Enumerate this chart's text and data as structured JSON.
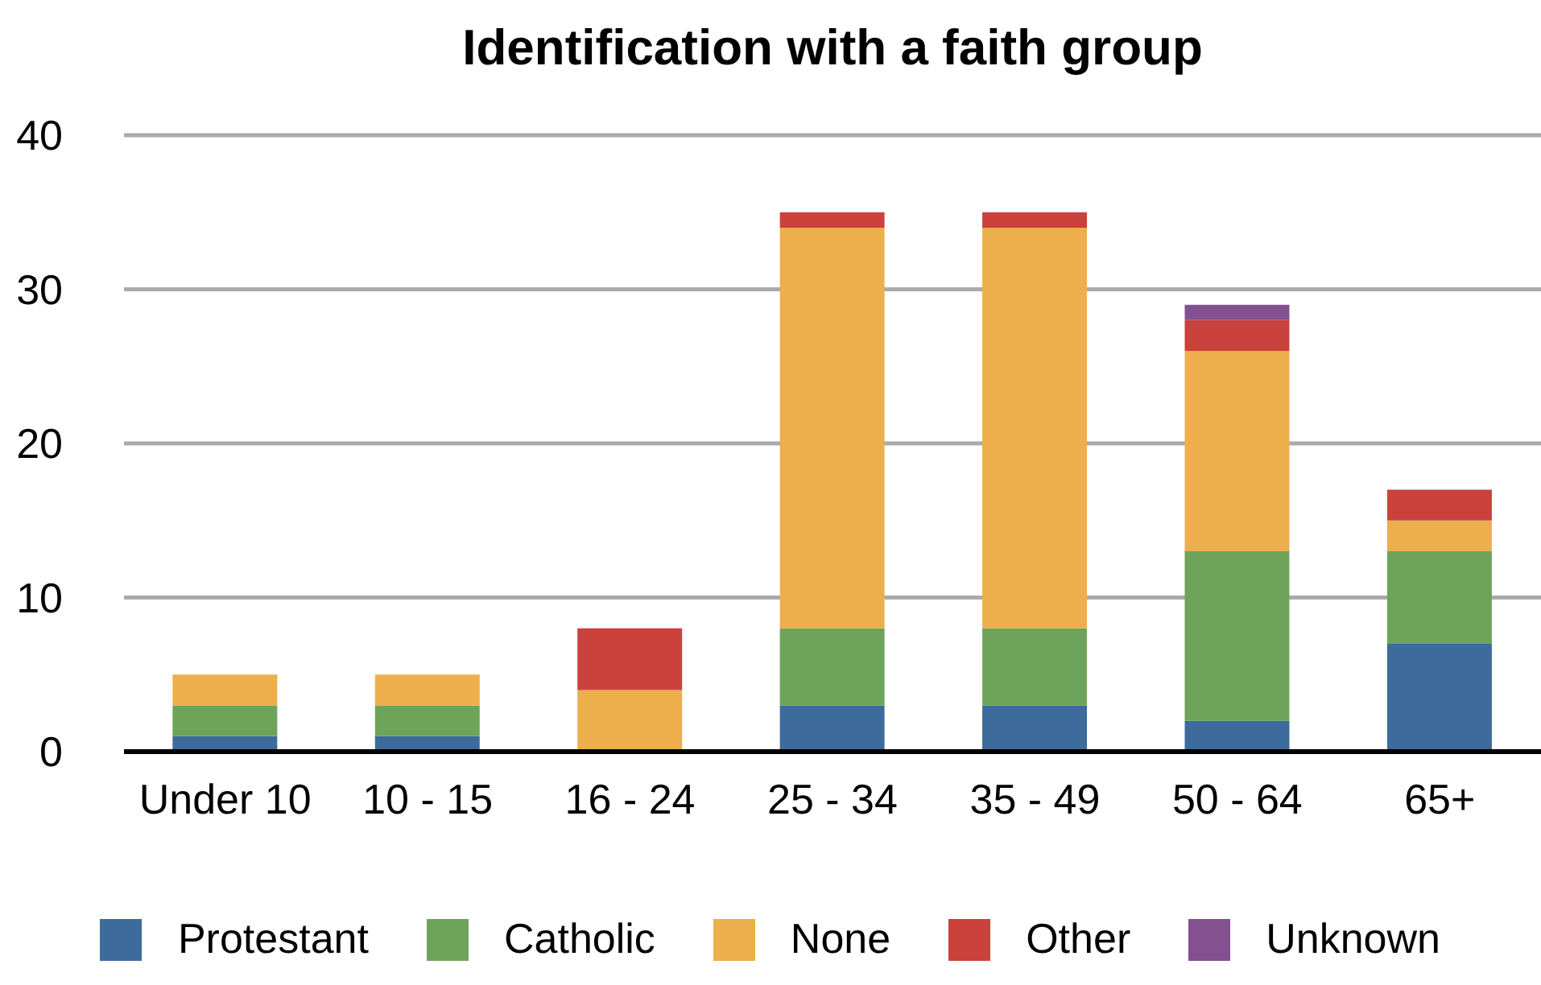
{
  "chart_data": {
    "type": "bar",
    "title": "Identification with a faith group",
    "categories": [
      "Under 10",
      "10 - 15",
      "16 - 24",
      "25 - 34",
      "35 - 49",
      "50 - 64",
      "65+"
    ],
    "series": [
      {
        "name": "Protestant",
        "color": "#3c6b9c",
        "values": [
          1,
          1,
          0,
          3,
          3,
          2,
          7
        ]
      },
      {
        "name": "Catholic",
        "color": "#6ea45a",
        "values": [
          2,
          2,
          0,
          5,
          5,
          11,
          6
        ]
      },
      {
        "name": "None",
        "color": "#ecaf4c",
        "values": [
          2,
          2,
          4,
          26,
          26,
          13,
          2
        ]
      },
      {
        "name": "Other",
        "color": "#cb423d",
        "values": [
          0,
          0,
          4,
          1,
          1,
          2,
          2
        ]
      },
      {
        "name": "Unknown",
        "color": "#835090",
        "values": [
          0,
          0,
          0,
          0,
          0,
          1,
          0
        ]
      }
    ],
    "stacked": true,
    "ylim": [
      0,
      40
    ],
    "yticks": [
      0,
      10,
      20,
      30,
      40
    ],
    "grid": "y",
    "legend": "bottom"
  }
}
